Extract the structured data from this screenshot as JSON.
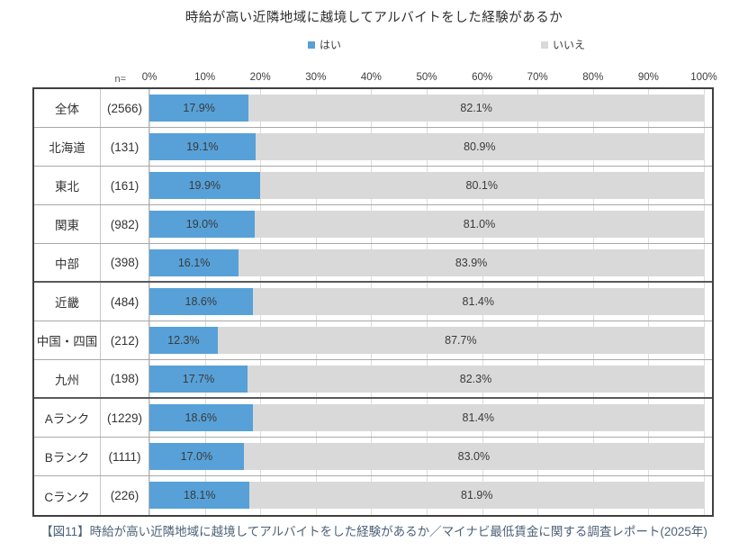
{
  "title": "時給が高い近隣地域に越境してアルバイトをした経験があるか",
  "legend": [
    {
      "label": "はい",
      "color": "#57a1d8"
    },
    {
      "label": "いいえ",
      "color": "#d9d9d9"
    }
  ],
  "axis": {
    "n_label": "n=",
    "ticks": [
      "0%",
      "10%",
      "20%",
      "30%",
      "40%",
      "50%",
      "60%",
      "70%",
      "80%",
      "90%",
      "100%"
    ]
  },
  "chart_data": {
    "type": "bar",
    "orientation": "horizontal",
    "stacked": true,
    "title": "時給が高い近隣地域に越境してアルバイトをした経験があるか",
    "xlim": [
      0,
      100
    ],
    "grid": true,
    "legend_position": "top",
    "categories": [
      "全体",
      "北海道",
      "東北",
      "関東",
      "中部",
      "近畿",
      "中国・四国",
      "九州",
      "Aランク",
      "Bランク",
      "Cランク"
    ],
    "n_labels": [
      "(2566)",
      "(131)",
      "(161)",
      "(982)",
      "(398)",
      "(484)",
      "(212)",
      "(198)",
      "(1229)",
      "(1111)",
      "(226)"
    ],
    "series": [
      {
        "name": "はい",
        "color": "#57a1d8",
        "values": [
          17.9,
          19.1,
          19.9,
          19.0,
          16.1,
          18.6,
          12.3,
          17.7,
          18.6,
          17.0,
          18.1
        ]
      },
      {
        "name": "いいえ",
        "color": "#d9d9d9",
        "values": [
          82.1,
          80.9,
          80.1,
          81.0,
          83.9,
          81.4,
          87.7,
          82.3,
          81.4,
          83.0,
          81.9
        ]
      }
    ],
    "thick_separator_after": [
      "中部",
      "九州"
    ]
  },
  "caption": "【図11】時給が高い近隣地域に越境してアルバイトをした経験があるか／マイナビ最低賃金に関する調査レポート(2025年)"
}
